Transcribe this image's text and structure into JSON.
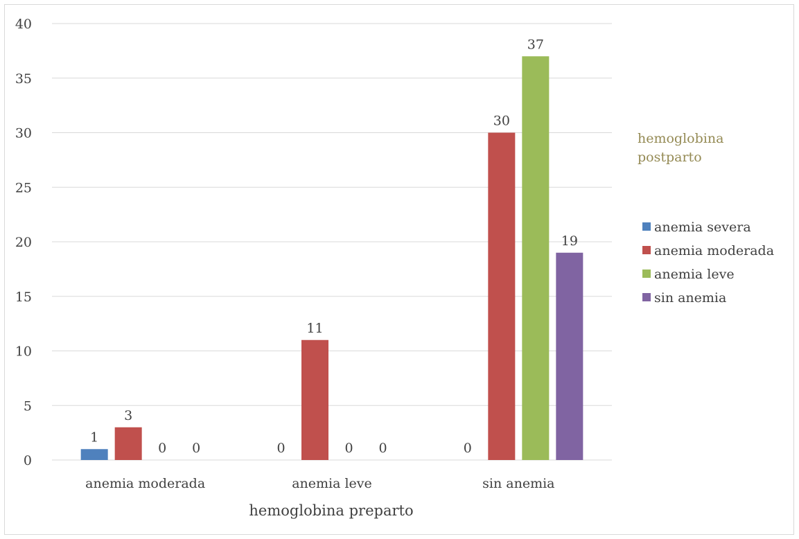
{
  "chart_data": {
    "type": "bar",
    "categories": [
      "anemia moderada",
      "anemia leve",
      "sin anemia"
    ],
    "series": [
      {
        "name": "anemia severa",
        "color": "#4f81bd",
        "values": [
          1,
          0,
          0
        ]
      },
      {
        "name": "anemia moderada",
        "color": "#c0504d",
        "values": [
          3,
          11,
          30
        ]
      },
      {
        "name": "anemia leve",
        "color": "#9bbb59",
        "values": [
          0,
          0,
          37
        ]
      },
      {
        "name": "sin anemia",
        "color": "#8064a2",
        "values": [
          0,
          0,
          19
        ]
      }
    ],
    "xlabel": "hemoglobina preparto",
    "legend_title_lines": [
      "hemoglobina",
      "postparto"
    ],
    "ylim": [
      0,
      40
    ],
    "yticks": [
      0,
      5,
      10,
      15,
      20,
      25,
      30,
      35,
      40
    ],
    "grid": true,
    "legend_position": "right"
  }
}
